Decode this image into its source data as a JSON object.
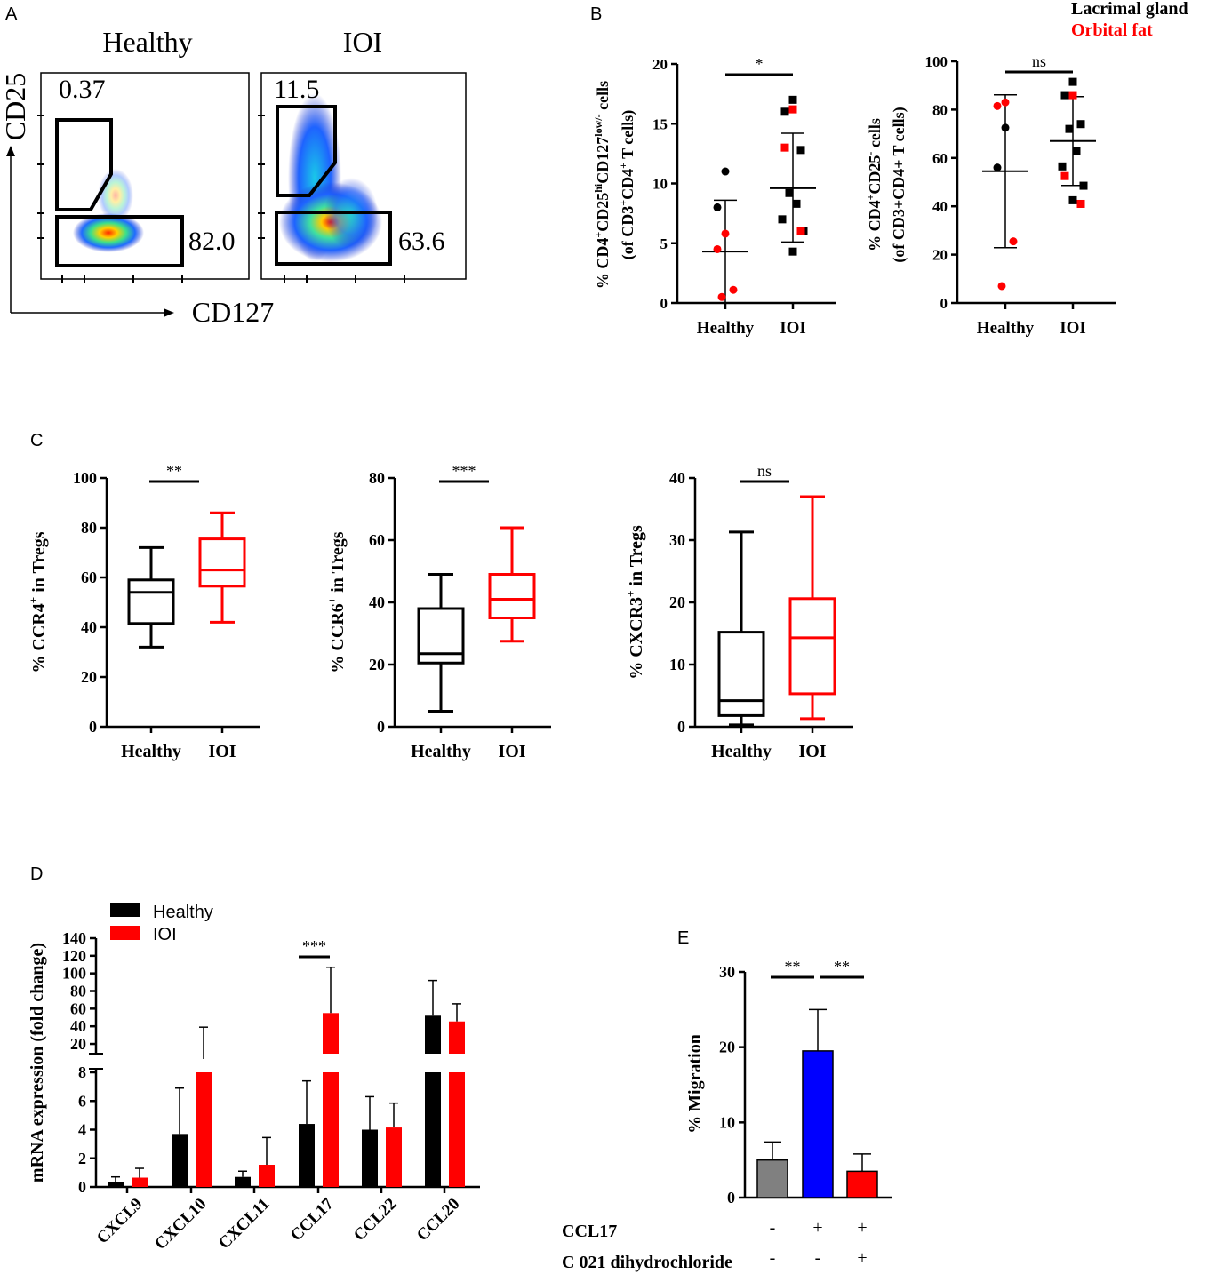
{
  "panel_letters": {
    "a": "A",
    "b": "B",
    "c": "C",
    "d": "D",
    "e": "E"
  },
  "legend_top": {
    "lacrimal": "Lacrimal gland",
    "orbital": "Orbital fat",
    "lacrimal_color": "#000000",
    "orbital_color": "#ff0000"
  },
  "panel_a": {
    "healthy_title": "Healthy",
    "ioi_title": "IOI",
    "y_axis": "CD25",
    "x_axis": "CD127",
    "healthy_treg_pct": "0.37",
    "healthy_conv_pct": "82.0",
    "ioi_treg_pct": "11.5",
    "ioi_conv_pct": "63.6"
  },
  "chart_data": [
    {
      "id": "B1",
      "type": "scatter",
      "ylabel_line1": "% CD4+CD25hiCD127low/- cells",
      "ylabel_line2": "(of CD3+CD4+ T cells)",
      "categories": [
        "Healthy",
        "IOI"
      ],
      "ylim": [
        0,
        20
      ],
      "yticks": [
        0,
        5,
        10,
        15,
        20
      ],
      "ytick_labels": [
        "0",
        "5",
        "10",
        "15",
        "20"
      ],
      "significance": "*",
      "groups": [
        {
          "name": "Healthy",
          "mean": 4.3,
          "sd_low": 0.0,
          "sd_high": 8.6,
          "black": [
            11.0,
            8.0
          ],
          "red": [
            5.8,
            4.5,
            1.1,
            0.5
          ]
        },
        {
          "name": "IOI",
          "mean": 9.6,
          "sd_low": 5.1,
          "sd_high": 14.2,
          "black": [
            17.0,
            16.0,
            12.8,
            9.2,
            8.3,
            7.0,
            6.0,
            4.3
          ],
          "red": [
            16.2,
            13.0,
            6.0
          ]
        }
      ]
    },
    {
      "id": "B2",
      "type": "scatter",
      "ylabel_line1": "% CD4+CD25- cells",
      "ylabel_line2": "(of CD3+CD4+ T cells)",
      "categories": [
        "Healthy",
        "IOI"
      ],
      "ylim": [
        0,
        100
      ],
      "yticks": [
        0,
        20,
        40,
        60,
        80,
        100
      ],
      "ytick_labels": [
        "0",
        "20",
        "40",
        "60",
        "80",
        "100"
      ],
      "significance": "ns",
      "groups": [
        {
          "name": "Healthy",
          "mean": 54.5,
          "sd_low": 22.9,
          "sd_high": 86.1,
          "black": [
            72.5,
            56.0
          ],
          "red": [
            83.0,
            81.5,
            25.5,
            7.0
          ]
        },
        {
          "name": "IOI",
          "mean": 67.0,
          "sd_low": 48.6,
          "sd_high": 85.4,
          "black": [
            91.5,
            86.0,
            74.0,
            72.0,
            63.0,
            56.5,
            48.5,
            42.5
          ],
          "red": [
            86.0,
            52.5,
            41.0
          ]
        }
      ]
    },
    {
      "id": "C1",
      "type": "box",
      "ylabel": "% CCR4+ in Tregs",
      "categories": [
        "Healthy",
        "IOI"
      ],
      "ylim": [
        0,
        100
      ],
      "yticks": [
        0,
        20,
        40,
        60,
        80,
        100
      ],
      "ytick_labels": [
        "0",
        "20",
        "40",
        "60",
        "80",
        "100"
      ],
      "significance": "**",
      "boxes": [
        {
          "name": "Healthy",
          "min": 32,
          "q1": 41.5,
          "median": 54,
          "q3": 59,
          "max": 72,
          "color": "#000000"
        },
        {
          "name": "IOI",
          "min": 42,
          "q1": 56.5,
          "median": 63,
          "q3": 75.5,
          "max": 86,
          "color": "#ff0000"
        }
      ]
    },
    {
      "id": "C2",
      "type": "box",
      "ylabel": "% CCR6+ in Tregs",
      "categories": [
        "Healthy",
        "IOI"
      ],
      "ylim": [
        0,
        80
      ],
      "yticks": [
        0,
        20,
        40,
        60,
        80
      ],
      "ytick_labels": [
        "0",
        "20",
        "40",
        "60",
        "80"
      ],
      "significance": "***",
      "boxes": [
        {
          "name": "Healthy",
          "min": 5,
          "q1": 20.5,
          "median": 23.5,
          "q3": 38,
          "max": 49,
          "color": "#000000"
        },
        {
          "name": "IOI",
          "min": 27.5,
          "q1": 35,
          "median": 41,
          "q3": 49,
          "max": 64,
          "color": "#ff0000"
        }
      ]
    },
    {
      "id": "C3",
      "type": "box",
      "ylabel": "% CXCR3+ in Tregs",
      "categories": [
        "Healthy",
        "IOI"
      ],
      "ylim": [
        0,
        40
      ],
      "yticks": [
        0,
        10,
        20,
        30,
        40
      ],
      "ytick_labels": [
        "0",
        "10",
        "20",
        "30",
        "40"
      ],
      "significance": "ns",
      "boxes": [
        {
          "name": "Healthy",
          "min": 0.3,
          "q1": 1.8,
          "median": 4.2,
          "q3": 15.2,
          "max": 31.3,
          "color": "#000000"
        },
        {
          "name": "IOI",
          "min": 1.3,
          "q1": 5.3,
          "median": 14.3,
          "q3": 20.6,
          "max": 37.0,
          "color": "#ff0000"
        }
      ]
    },
    {
      "id": "D",
      "type": "bar",
      "ylabel": "mRNA expression (fold change)",
      "categories": [
        "CXCL9",
        "CXCL10",
        "CXCL11",
        "CCL17",
        "CCL22",
        "CCL20"
      ],
      "series": [
        {
          "name": "Healthy",
          "color": "#000000",
          "values": [
            0.35,
            3.7,
            0.7,
            4.4,
            4.0,
            52.0
          ],
          "errors": [
            0.35,
            3.2,
            0.4,
            3.0,
            2.3,
            40.0
          ]
        },
        {
          "name": "IOI",
          "color": "#ff0000",
          "values": [
            0.65,
            14.0,
            1.55,
            55.0,
            4.15,
            45.5
          ],
          "errors": [
            0.65,
            25.0,
            1.9,
            52.0,
            1.7,
            20.0
          ]
        }
      ],
      "lower_ylim": [
        0,
        8
      ],
      "lower_yticks": [
        0,
        2,
        4,
        6,
        8
      ],
      "lower_ytick_labels": [
        "0",
        "2",
        "4",
        "6",
        "8"
      ],
      "upper_ylim": [
        17,
        140
      ],
      "upper_yticks": [
        20,
        40,
        60,
        80,
        100,
        120,
        140
      ],
      "upper_ytick_labels": [
        "20",
        "40",
        "60",
        "80",
        "100",
        "120",
        "140"
      ],
      "significance": [
        {
          "category": "CCL17",
          "label": "***"
        }
      ]
    },
    {
      "id": "E",
      "type": "bar",
      "ylabel": "% Migration",
      "ylim": [
        0,
        30
      ],
      "yticks": [
        0,
        10,
        20,
        30
      ],
      "ytick_labels": [
        "0",
        "10",
        "20",
        "30"
      ],
      "values": [
        5.0,
        19.5,
        3.5
      ],
      "errors": [
        2.4,
        5.5,
        2.3
      ],
      "colors": [
        "#808080",
        "#0000ff",
        "#ff0000"
      ],
      "significance": [
        "**",
        "**"
      ],
      "conditions": [
        {
          "label": "CCL17",
          "marks": [
            "-",
            "+",
            "+"
          ]
        },
        {
          "label": "C 021 dihydrochloride",
          "marks": [
            "-",
            "-",
            "+"
          ]
        }
      ]
    }
  ]
}
